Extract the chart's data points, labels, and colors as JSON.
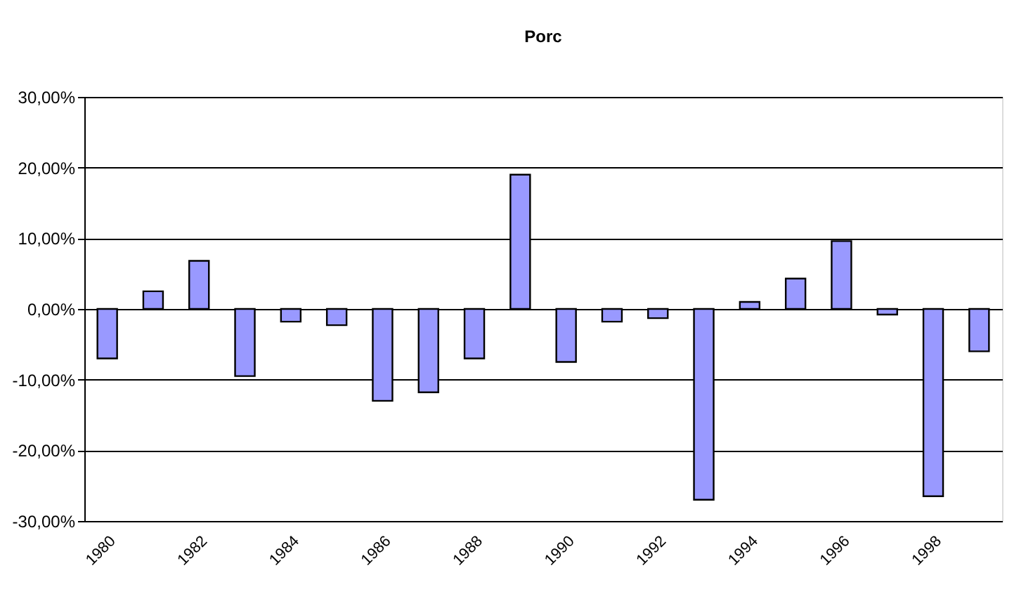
{
  "chart_data": {
    "type": "bar",
    "title": "Porc",
    "categories": [
      "1980",
      null,
      "1982",
      null,
      "1984",
      null,
      "1986",
      null,
      "1988",
      null,
      "1990",
      null,
      "1992",
      null,
      "1994",
      null,
      "1996",
      null,
      "1998",
      null
    ],
    "values": [
      -7,
      2.5,
      6.8,
      -9.5,
      -1.8,
      -2.3,
      -13,
      -11.8,
      -7,
      19,
      -7.5,
      -1.8,
      -1.3,
      -27,
      1,
      4.3,
      9.6,
      -0.8,
      -26.5,
      -6
    ],
    "color": "#9999ff",
    "ylim": [
      -30,
      30
    ],
    "yticks": [
      {
        "value": -30,
        "label": "-30,00%"
      },
      {
        "value": -20,
        "label": "-20,00%"
      },
      {
        "value": -10,
        "label": "-10,00%"
      },
      {
        "value": 0,
        "label": "0,00%"
      },
      {
        "value": 10,
        "label": "10,00%"
      },
      {
        "value": 20,
        "label": "20,00%"
      },
      {
        "value": 30,
        "label": "30,00%"
      }
    ],
    "grid": "y"
  }
}
